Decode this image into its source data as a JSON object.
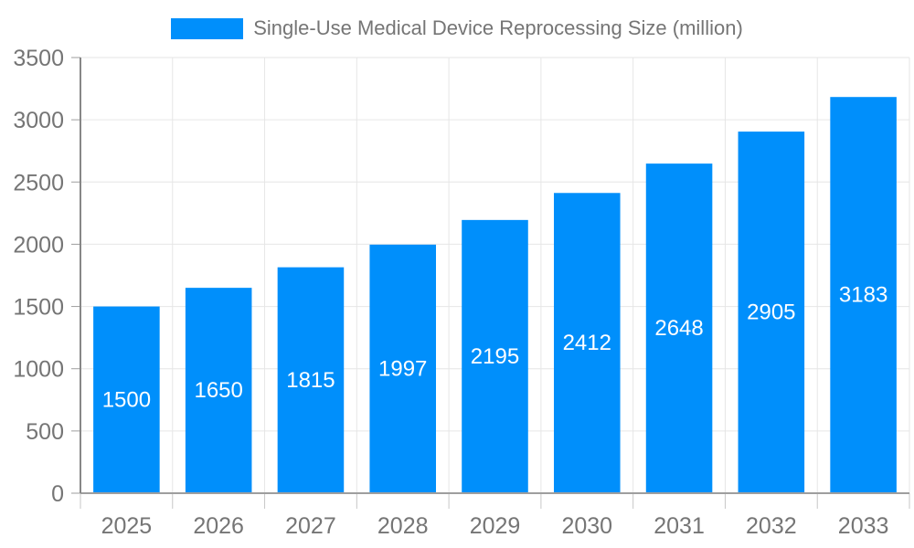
{
  "colors": {
    "bar": "#008FFB",
    "axis_text": "#757575",
    "legend_text": "#757575",
    "value_label_text": "#ffffff",
    "gridline": "#e6e6e6",
    "x_axis_line": "#9e9e9e",
    "y_axis_line": "#878787",
    "x_tick": "#c7c7c7",
    "y_tick": "#9e9e9e",
    "background": "#ffffff"
  },
  "legend": {
    "label": "Single-Use Medical Device Reprocessing Size (million)"
  },
  "chart_data": {
    "type": "bar",
    "title": "Single-Use Medical Device Reprocessing Size (million)",
    "series_name": "Single-Use Medical Device Reprocessing Size (million)",
    "categories": [
      "2025",
      "2026",
      "2027",
      "2028",
      "2029",
      "2030",
      "2031",
      "2032",
      "2033"
    ],
    "values": [
      1500,
      1650,
      1815,
      1997,
      2195,
      2412,
      2648,
      2905,
      3183
    ],
    "value_labels": [
      "1500",
      "1650",
      "1815",
      "1997",
      "2195",
      "2412",
      "2648",
      "2905",
      "3183"
    ],
    "xlabel": "",
    "ylabel": "",
    "ylim": [
      0,
      3500
    ],
    "yticks": [
      0,
      500,
      1000,
      1500,
      2000,
      2500,
      3000,
      3500
    ],
    "ytick_labels": [
      "0",
      "500",
      "1000",
      "1500",
      "2000",
      "2500",
      "3000",
      "3500"
    ],
    "grid": true,
    "legend_position": "top"
  }
}
